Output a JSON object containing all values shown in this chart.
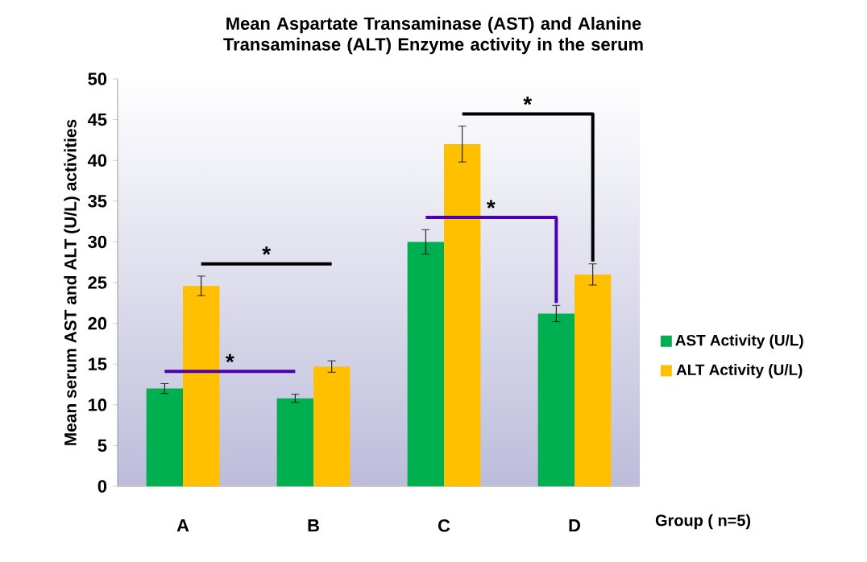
{
  "chart_data": {
    "type": "bar",
    "title": "Mean  Aspartate Transaminase (AST) and Alanine Transaminase (ALT) Enzyme activity in the serum",
    "xlabel": "Group ( n=5)",
    "ylabel": "Mean  serum AST and ALT (U/L)  activities",
    "categories": [
      "A",
      "B",
      "C",
      "D"
    ],
    "series": [
      {
        "name": "AST Activity (U/L)",
        "color": "#00b050",
        "values": [
          12,
          10.8,
          30,
          21.2
        ],
        "errors": [
          0.6,
          0.5,
          1.5,
          1
        ]
      },
      {
        "name": "ALT Activity (U/L)",
        "color": "#ffc000",
        "values": [
          24.6,
          14.7,
          42,
          26
        ],
        "errors": [
          1.2,
          0.7,
          2.2,
          1.3
        ]
      }
    ],
    "ylim": [
      0,
      50
    ],
    "yticks": [
      0,
      5,
      10,
      15,
      20,
      25,
      30,
      35,
      40,
      45,
      50
    ],
    "legend": "right",
    "grid": false,
    "annotations": [
      "*",
      "*",
      "*",
      "*"
    ]
  }
}
